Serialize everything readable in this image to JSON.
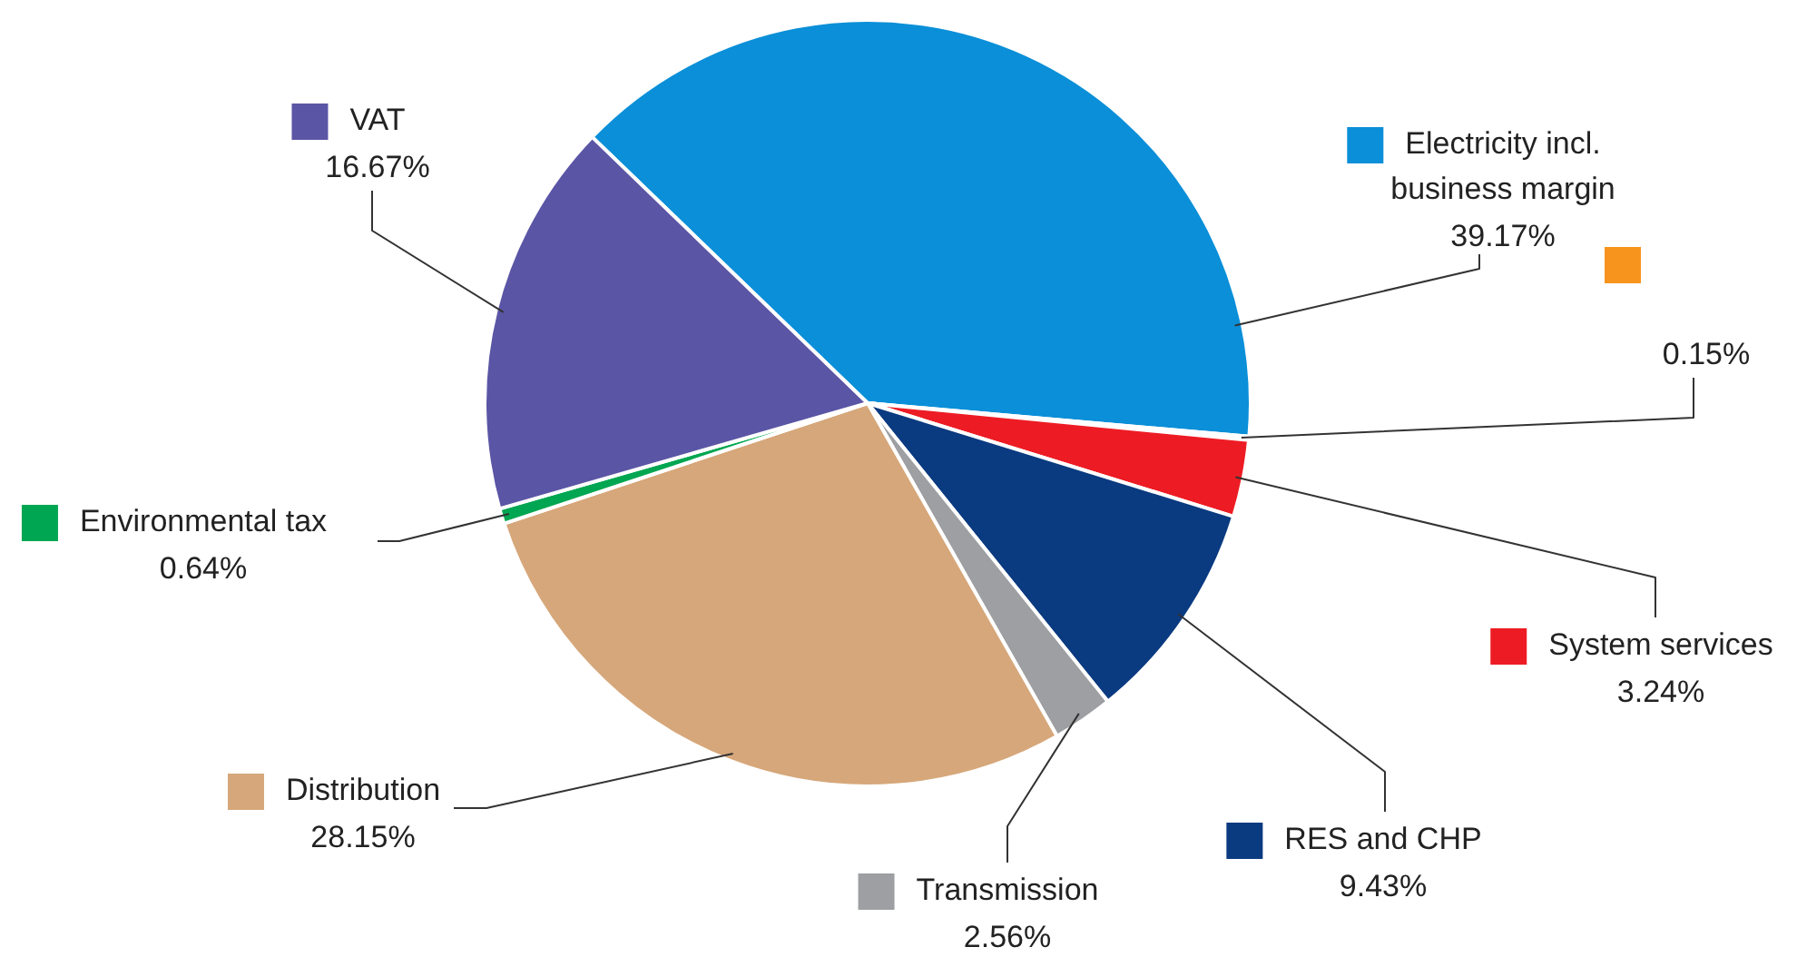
{
  "chart_data": {
    "type": "pie",
    "categories": [
      "Electricity incl. business margin",
      null,
      "System services",
      "RES and CHP",
      "Transmission",
      "Distribution",
      "Environmental tax",
      "VAT"
    ],
    "values": [
      39.17,
      0.15,
      3.24,
      9.43,
      2.56,
      28.15,
      0.64,
      16.67
    ],
    "value_labels": [
      "39.17%",
      "0.15%",
      "3.24%",
      "9.43%",
      "2.56%",
      "28.15%",
      "0.64%",
      "16.67%"
    ],
    "colors": [
      "#0a8fd8",
      "#f7941d",
      "#ed1c24",
      "#0a3a80",
      "#9d9fa2",
      "#d6a77a",
      "#00a651",
      "#5b55a5"
    ],
    "legend": "right"
  }
}
